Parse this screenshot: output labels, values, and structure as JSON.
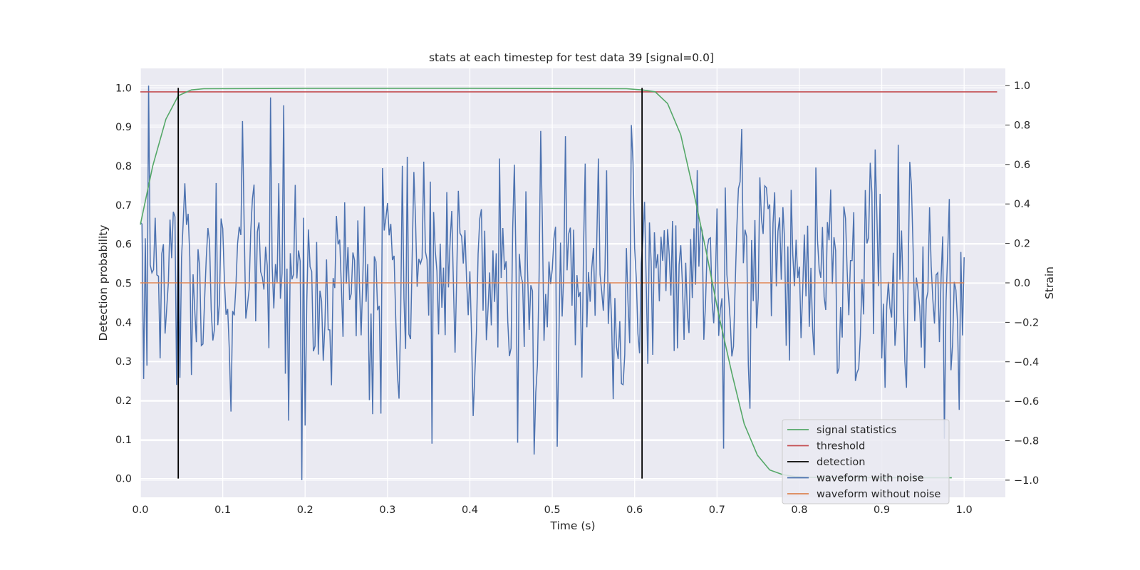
{
  "chart_data": {
    "type": "line",
    "title": "stats at each timestep for test data 39 [signal=0.0]",
    "xlabel": "Time (s)",
    "ylabel": "Detection probability",
    "ylabel_right": "Strain",
    "xlim": [
      0.0,
      1.05
    ],
    "ylim": [
      -0.048,
      1.05
    ],
    "ylim_right": [
      -1.087,
      1.087
    ],
    "xticks": [
      0.0,
      0.1,
      0.2,
      0.3,
      0.4,
      0.5,
      0.6,
      0.7,
      0.8,
      0.9,
      1.0
    ],
    "xtick_labels": [
      "0.0",
      "0.1",
      "0.2",
      "0.3",
      "0.4",
      "0.5",
      "0.6",
      "0.7",
      "0.8",
      "0.9",
      "1.0"
    ],
    "yticks": [
      0.0,
      0.1,
      0.2,
      0.3,
      0.4,
      0.5,
      0.6,
      0.7,
      0.8,
      0.9,
      1.0
    ],
    "ytick_labels": [
      "0.0",
      "0.1",
      "0.2",
      "0.3",
      "0.4",
      "0.5",
      "0.6",
      "0.7",
      "0.8",
      "0.9",
      "1.0"
    ],
    "yticks_right": [
      -1.0,
      -0.8,
      -0.6,
      -0.4,
      -0.2,
      0.0,
      0.2,
      0.4,
      0.6,
      0.8,
      1.0
    ],
    "ytick_labels_right": [
      "−1.0",
      "−0.8",
      "−0.6",
      "−0.4",
      "−0.2",
      "0.0",
      "0.2",
      "0.4",
      "0.6",
      "0.8",
      "1.0"
    ],
    "grid": true,
    "legend_position": "lower-right",
    "background": "#eaeaf2",
    "series": [
      {
        "name": "signal statistics",
        "axis": "left",
        "color": "#55a868",
        "x": [
          0.0,
          0.015,
          0.031,
          0.046,
          0.062,
          0.077,
          0.2,
          0.4,
          0.59,
          0.609,
          0.625,
          0.64,
          0.656,
          0.671,
          0.687,
          0.702,
          0.718,
          0.733,
          0.749,
          0.764,
          0.78,
          0.795,
          0.811,
          0.9,
          0.985
        ],
        "values": [
          0.65,
          0.8,
          0.92,
          0.98,
          0.995,
          0.998,
          0.999,
          0.999,
          0.998,
          0.995,
          0.99,
          0.96,
          0.88,
          0.74,
          0.58,
          0.42,
          0.27,
          0.14,
          0.06,
          0.022,
          0.01,
          0.005,
          0.003,
          0.002,
          0.002
        ]
      },
      {
        "name": "threshold",
        "axis": "left",
        "color": "#c44e52",
        "x": [
          0.0,
          1.04
        ],
        "values": [
          0.99,
          0.99
        ]
      },
      {
        "name": "detection",
        "axis": "left",
        "color": "#000000",
        "segments": [
          {
            "x": 0.046,
            "y0": 0.0,
            "y1": 1.0
          },
          {
            "x": 0.609,
            "y0": 0.0,
            "y1": 1.0
          }
        ]
      },
      {
        "name": "waveform with noise",
        "axis": "right",
        "color": "#4c72b0",
        "x_start": 0.0,
        "x_end": 1.0,
        "x_step": 0.002,
        "values_note_count": 501,
        "peak_values": [
          {
            "x": 0.009,
            "y": 1.0
          },
          {
            "x": 0.157,
            "y": 0.94
          },
          {
            "x": 0.175,
            "y": 0.9
          },
          {
            "x": 0.195,
            "y": -1.0
          },
          {
            "x": 0.486,
            "y": 0.77
          },
          {
            "x": 0.478,
            "y": -0.87
          },
          {
            "x": 0.505,
            "y": -0.83
          },
          {
            "x": 0.595,
            "y": 0.8
          },
          {
            "x": 0.73,
            "y": 0.78
          },
          {
            "x": 0.708,
            "y": -0.84
          },
          {
            "x": 0.92,
            "y": 0.7
          },
          {
            "x": 0.975,
            "y": -0.79
          }
        ]
      },
      {
        "name": "waveform without noise",
        "axis": "right",
        "color": "#dd8452",
        "x": [
          0.0,
          1.0
        ],
        "values": [
          0.0,
          0.0
        ]
      }
    ]
  }
}
